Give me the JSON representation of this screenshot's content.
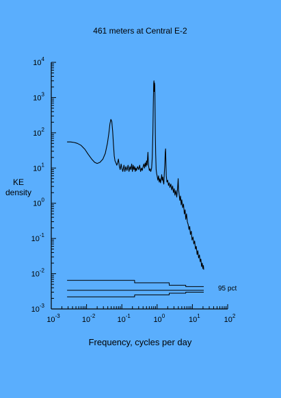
{
  "colors": {
    "background": "#5aaefd",
    "ink": "#000000"
  },
  "chart_data": {
    "type": "line",
    "title": "461 meters at Central E-2",
    "xlabel": "Frequency, cycles per day",
    "ylabel_lines": [
      "KE",
      "density"
    ],
    "xscale": "log",
    "yscale": "log",
    "xlim": [
      0.001,
      100
    ],
    "ylim": [
      0.001,
      10000
    ],
    "grid": false,
    "x_ticks": [
      {
        "base": "10",
        "exp": "-3",
        "value": 0.001
      },
      {
        "base": "10",
        "exp": "-2",
        "value": 0.01
      },
      {
        "base": "10",
        "exp": "-1",
        "value": 0.1
      },
      {
        "base": "10",
        "exp": "0",
        "value": 1
      },
      {
        "base": "10",
        "exp": "1",
        "value": 10
      },
      {
        "base": "10",
        "exp": "2",
        "value": 100
      }
    ],
    "y_ticks": [
      {
        "base": "10",
        "exp": "4",
        "value": 10000
      },
      {
        "base": "10",
        "exp": "3",
        "value": 1000
      },
      {
        "base": "10",
        "exp": "2",
        "value": 100
      },
      {
        "base": "10",
        "exp": "1",
        "value": 10
      },
      {
        "base": "10",
        "exp": "0",
        "value": 1
      },
      {
        "base": "10",
        "exp": "-1",
        "value": 0.1
      },
      {
        "base": "10",
        "exp": "-2",
        "value": 0.01
      },
      {
        "base": "10",
        "exp": "-3",
        "value": 0.001
      }
    ],
    "series": [
      {
        "points": [
          [
            0.0028,
            55
          ],
          [
            0.0035,
            55
          ],
          [
            0.0045,
            53
          ],
          [
            0.0055,
            50
          ],
          [
            0.007,
            44
          ],
          [
            0.009,
            34
          ],
          [
            0.011,
            25
          ],
          [
            0.014,
            18
          ],
          [
            0.017,
            14.5
          ],
          [
            0.02,
            13.5
          ],
          [
            0.024,
            14.5
          ],
          [
            0.029,
            18
          ],
          [
            0.034,
            26
          ],
          [
            0.039,
            50
          ],
          [
            0.043,
            100
          ],
          [
            0.046,
            180
          ],
          [
            0.049,
            240
          ],
          [
            0.052,
            210
          ],
          [
            0.055,
            110
          ],
          [
            0.058,
            45
          ],
          [
            0.061,
            22
          ],
          [
            0.064,
            16
          ],
          [
            0.068,
            14
          ],
          [
            0.072,
            12
          ],
          [
            0.076,
            14
          ],
          [
            0.08,
            18
          ],
          [
            0.085,
            11
          ],
          [
            0.09,
            9
          ],
          [
            0.095,
            13
          ],
          [
            0.1,
            10
          ],
          [
            0.107,
            8
          ],
          [
            0.115,
            12
          ],
          [
            0.122,
            8
          ],
          [
            0.13,
            11
          ],
          [
            0.14,
            8.5
          ],
          [
            0.15,
            12
          ],
          [
            0.16,
            8
          ],
          [
            0.17,
            11
          ],
          [
            0.18,
            9
          ],
          [
            0.19,
            13
          ],
          [
            0.2,
            8
          ],
          [
            0.21,
            12
          ],
          [
            0.22,
            9
          ],
          [
            0.23,
            11
          ],
          [
            0.24,
            8
          ],
          [
            0.25,
            10
          ],
          [
            0.26,
            8.5
          ],
          [
            0.28,
            11
          ],
          [
            0.3,
            9
          ],
          [
            0.32,
            12
          ],
          [
            0.34,
            8
          ],
          [
            0.36,
            10
          ],
          [
            0.38,
            8.5
          ],
          [
            0.4,
            11
          ],
          [
            0.42,
            13
          ],
          [
            0.44,
            10
          ],
          [
            0.46,
            14
          ],
          [
            0.48,
            11
          ],
          [
            0.5,
            16
          ],
          [
            0.52,
            12
          ],
          [
            0.55,
            28
          ],
          [
            0.57,
            12
          ],
          [
            0.6,
            8.5
          ],
          [
            0.63,
            9.5
          ],
          [
            0.66,
            8
          ],
          [
            0.7,
            10
          ],
          [
            0.73,
            20
          ],
          [
            0.76,
            100
          ],
          [
            0.78,
            600
          ],
          [
            0.8,
            2500
          ],
          [
            0.815,
            3000
          ],
          [
            0.83,
            1500
          ],
          [
            0.845,
            2600
          ],
          [
            0.86,
            2200
          ],
          [
            0.875,
            500
          ],
          [
            0.89,
            90
          ],
          [
            0.91,
            25
          ],
          [
            0.94,
            9
          ],
          [
            0.97,
            7
          ],
          [
            1.0,
            6
          ],
          [
            1.05,
            4.5
          ],
          [
            1.1,
            6
          ],
          [
            1.15,
            4
          ],
          [
            1.2,
            5
          ],
          [
            1.25,
            3.8
          ],
          [
            1.3,
            4.8
          ],
          [
            1.35,
            6.5
          ],
          [
            1.4,
            4.5
          ],
          [
            1.45,
            5.5
          ],
          [
            1.5,
            4
          ],
          [
            1.55,
            3.5
          ],
          [
            1.6,
            7
          ],
          [
            1.65,
            12
          ],
          [
            1.7,
            28
          ],
          [
            1.74,
            35
          ],
          [
            1.78,
            14
          ],
          [
            1.82,
            6
          ],
          [
            1.9,
            4
          ],
          [
            2.0,
            4.5
          ],
          [
            2.1,
            3.2
          ],
          [
            2.2,
            3.8
          ],
          [
            2.3,
            2.8
          ],
          [
            2.45,
            3.5
          ],
          [
            2.6,
            2.4
          ],
          [
            2.75,
            3.1
          ],
          [
            2.9,
            2.0
          ],
          [
            3.05,
            2.6
          ],
          [
            3.2,
            1.7
          ],
          [
            3.4,
            2.3
          ],
          [
            3.6,
            1.5
          ],
          [
            3.8,
            2.6
          ],
          [
            3.95,
            5
          ],
          [
            4.05,
            2.5
          ],
          [
            4.2,
            1.8
          ],
          [
            4.4,
            1.2
          ],
          [
            4.6,
            1.6
          ],
          [
            4.8,
            0.9
          ],
          [
            5.0,
            1.25
          ],
          [
            5.3,
            0.75
          ],
          [
            5.6,
            0.95
          ],
          [
            5.9,
            0.5
          ],
          [
            6.2,
            0.65
          ],
          [
            6.5,
            0.35
          ],
          [
            6.8,
            0.5
          ],
          [
            7.2,
            0.3
          ],
          [
            7.6,
            0.25
          ],
          [
            8.0,
            0.18
          ],
          [
            8.4,
            0.22
          ],
          [
            8.8,
            0.13
          ],
          [
            9.3,
            0.16
          ],
          [
            9.8,
            0.09
          ],
          [
            10.4,
            0.11
          ],
          [
            11.0,
            0.07
          ],
          [
            11.6,
            0.085
          ],
          [
            12.2,
            0.05
          ],
          [
            12.9,
            0.06
          ],
          [
            13.6,
            0.035
          ],
          [
            14.3,
            0.045
          ],
          [
            15.0,
            0.028
          ],
          [
            15.8,
            0.034
          ],
          [
            16.6,
            0.022
          ],
          [
            17.4,
            0.026
          ],
          [
            18.2,
            0.016
          ],
          [
            19.0,
            0.02
          ],
          [
            19.8,
            0.014
          ],
          [
            20.5,
            0.017
          ],
          [
            21.0,
            0.013
          ]
        ]
      }
    ],
    "confidence_band": {
      "label": "95 pct",
      "upper": [
        [
          0.0028,
          0.0065
        ],
        [
          0.23,
          0.0065
        ],
        [
          0.23,
          0.0055
        ],
        [
          2.2,
          0.0055
        ],
        [
          2.2,
          0.0047
        ],
        [
          6.5,
          0.0047
        ],
        [
          6.5,
          0.0043
        ],
        [
          21.0,
          0.0043
        ]
      ],
      "middle": [
        [
          0.0028,
          0.0034
        ],
        [
          21.0,
          0.0034
        ]
      ],
      "lower": [
        [
          0.0028,
          0.0022
        ],
        [
          0.23,
          0.0022
        ],
        [
          0.23,
          0.0025
        ],
        [
          2.2,
          0.0025
        ],
        [
          2.2,
          0.0028
        ],
        [
          6.5,
          0.0028
        ],
        [
          6.5,
          0.003
        ],
        [
          21.0,
          0.003
        ]
      ]
    }
  }
}
